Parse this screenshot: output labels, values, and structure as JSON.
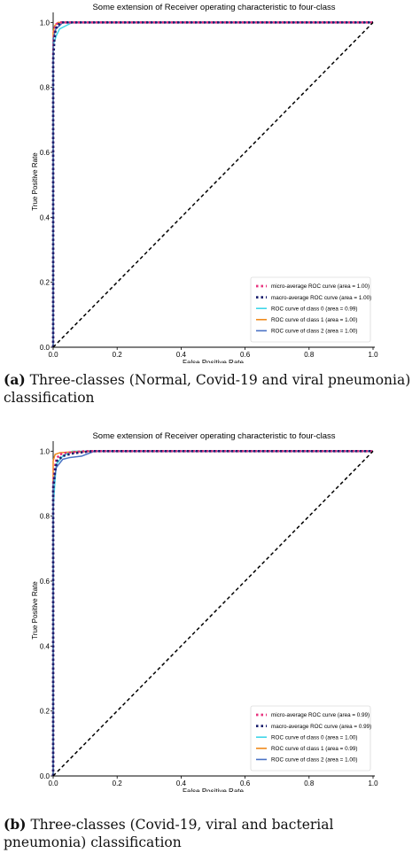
{
  "charts": [
    {
      "caption_label": "(a)",
      "caption_text": "Three-classes (Normal, Covid-19 and viral pneumonia) classification",
      "chart_data": {
        "type": "line",
        "title": "Some extension of Receiver operating characteristic to four-class",
        "xlabel": "False Positive Rate",
        "ylabel": "True Positive Rate",
        "xlim": [
          0,
          1
        ],
        "ylim": [
          0,
          1.02
        ],
        "x_ticks": [
          "0.0",
          "0.2",
          "0.4",
          "0.6",
          "0.8",
          "1.0"
        ],
        "y_ticks": [
          "0.0",
          "0.2",
          "0.4",
          "0.6",
          "0.8",
          "1.0"
        ],
        "legend_position": "lower right",
        "grid": false,
        "series": [
          {
            "name": "micro-average ROC curve (area = 1.00)",
            "color": "#e8337e",
            "style": "dotted",
            "x": [
              0,
              0,
              0.003,
              0.006,
              0.01,
              0.02,
              1
            ],
            "y": [
              0,
              0.9,
              0.96,
              0.985,
              0.995,
              1.0,
              1.0
            ]
          },
          {
            "name": "macro-average ROC curve (area = 1.00)",
            "color": "#1a1f6e",
            "style": "dotted",
            "x": [
              0,
              0,
              0.004,
              0.008,
              0.015,
              0.03,
              1
            ],
            "y": [
              0,
              0.88,
              0.95,
              0.98,
              0.993,
              1.0,
              1.0
            ]
          },
          {
            "name": "ROC curve of class 0 (area = 0.99)",
            "color": "#3fd6e8",
            "style": "solid",
            "x": [
              0,
              0,
              0.01,
              0.02,
              0.04,
              0.06,
              1
            ],
            "y": [
              0,
              0.93,
              0.96,
              0.98,
              0.99,
              1.0,
              1.0
            ]
          },
          {
            "name": "ROC curve of class 1 (area = 1.00)",
            "color": "#f08a1c",
            "style": "solid",
            "x": [
              0,
              0,
              0.005,
              0.015,
              1
            ],
            "y": [
              0,
              0.97,
              0.99,
              1.0,
              1.0
            ]
          },
          {
            "name": "ROC curve of class 2 (area = 1.00)",
            "color": "#4a72c4",
            "style": "solid",
            "x": [
              0,
              0,
              0.008,
              0.02,
              0.03,
              1
            ],
            "y": [
              0,
              0.95,
              0.98,
              0.99,
              1.0,
              1.0
            ]
          },
          {
            "name": "",
            "color": "#000000",
            "style": "dashed",
            "x": [
              0,
              1
            ],
            "y": [
              0,
              1
            ]
          }
        ]
      }
    },
    {
      "caption_label": "(b)",
      "caption_text": "Three-classes (Covid-19, viral and bacterial pneumonia) classification",
      "chart_data": {
        "type": "line",
        "title": "Some extension of Receiver operating characteristic to four-class",
        "xlabel": "False Positive Rate",
        "ylabel": "True Positive Rate",
        "xlim": [
          0,
          1
        ],
        "ylim": [
          0,
          1.02
        ],
        "x_ticks": [
          "0.0",
          "0.2",
          "0.4",
          "0.6",
          "0.8",
          "1.0"
        ],
        "y_ticks": [
          "0.0",
          "0.2",
          "0.4",
          "0.6",
          "0.8",
          "1.0"
        ],
        "legend_position": "lower right",
        "grid": false,
        "series": [
          {
            "name": "micro-average ROC curve (area = 0.99)",
            "color": "#e8337e",
            "style": "dotted",
            "x": [
              0,
              0,
              0.005,
              0.01,
              0.02,
              0.04,
              0.1,
              1
            ],
            "y": [
              0,
              0.9,
              0.95,
              0.975,
              0.99,
              0.995,
              1.0,
              1.0
            ]
          },
          {
            "name": "macro-average ROC curve (area = 0.99)",
            "color": "#1a1f6e",
            "style": "dotted",
            "x": [
              0,
              0,
              0.006,
              0.012,
              0.03,
              0.06,
              0.12,
              1
            ],
            "y": [
              0,
              0.88,
              0.94,
              0.97,
              0.985,
              0.993,
              1.0,
              1.0
            ]
          },
          {
            "name": "ROC curve of class 0 (area = 1.00)",
            "color": "#3fd6e8",
            "style": "solid",
            "x": [
              0,
              0,
              0.005,
              0.01,
              0.03,
              0.06,
              1
            ],
            "y": [
              0,
              0.82,
              0.9,
              0.96,
              0.985,
              1.0,
              1.0
            ]
          },
          {
            "name": "ROC curve of class 1 (area = 0.99)",
            "color": "#f08a1c",
            "style": "solid",
            "x": [
              0,
              0,
              0.006,
              0.02,
              0.05,
              0.14,
              1
            ],
            "y": [
              0,
              0.97,
              0.99,
              0.995,
              0.997,
              1.0,
              1.0
            ]
          },
          {
            "name": "ROC curve of class 2 (area = 1.00)",
            "color": "#4a72c4",
            "style": "solid",
            "x": [
              0,
              0,
              0.01,
              0.03,
              0.05,
              0.09,
              0.13,
              1
            ],
            "y": [
              0,
              0.9,
              0.95,
              0.975,
              0.98,
              0.985,
              1.0,
              1.0
            ]
          },
          {
            "name": "",
            "color": "#000000",
            "style": "dashed",
            "x": [
              0,
              1
            ],
            "y": [
              0,
              1
            ]
          }
        ]
      }
    }
  ]
}
